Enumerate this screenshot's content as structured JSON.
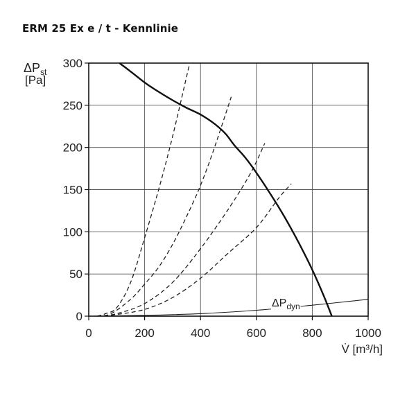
{
  "title": "ERM 25 Ex e / t - Kennlinie",
  "chart_data": {
    "type": "line",
    "ylabel_main": "ΔP",
    "ylabel_sub": "st",
    "ylabel_unit": "[Pa]",
    "xlabel": "V̇ [m³/h]",
    "xlim": [
      0,
      1000
    ],
    "ylim": [
      0,
      300
    ],
    "x_ticks": [
      "0",
      "200",
      "400",
      "600",
      "800",
      "1000"
    ],
    "y_ticks": [
      "0",
      "50",
      "100",
      "150",
      "200",
      "250",
      "300"
    ],
    "grid": true,
    "fan_curve": {
      "x": [
        110,
        150,
        200,
        250,
        300,
        350,
        400,
        450,
        490,
        520,
        560,
        600,
        650,
        700,
        750,
        800,
        840,
        870
      ],
      "y": [
        300,
        290,
        277,
        266,
        256,
        247,
        239,
        228,
        216,
        203,
        188,
        170,
        145,
        118,
        88,
        55,
        25,
        0
      ]
    },
    "system_curves": [
      {
        "x": [
          30,
          60,
          100,
          150,
          200,
          250,
          300,
          360
        ],
        "y": [
          0,
          3,
          10,
          40,
          93,
          150,
          213,
          298
        ]
      },
      {
        "x": [
          30,
          80,
          150,
          200,
          250,
          300,
          350,
          400,
          450,
          510
        ],
        "y": [
          0,
          3,
          20,
          38,
          58,
          85,
          118,
          155,
          200,
          260
        ]
      },
      {
        "x": [
          30,
          100,
          200,
          300,
          400,
          500,
          580,
          630
        ],
        "y": [
          0,
          3,
          15,
          40,
          80,
          127,
          170,
          205
        ]
      },
      {
        "x": [
          30,
          100,
          200,
          300,
          400,
          500,
          600,
          680,
          725
        ],
        "y": [
          0,
          2,
          8,
          22,
          45,
          75,
          105,
          140,
          157
        ]
      }
    ],
    "dynamic_pressure": {
      "label_main": "ΔP",
      "label_sub": "dyn",
      "x": [
        0,
        200,
        400,
        600,
        800,
        1000
      ],
      "y": [
        0,
        1,
        3,
        7,
        13,
        20
      ]
    }
  }
}
